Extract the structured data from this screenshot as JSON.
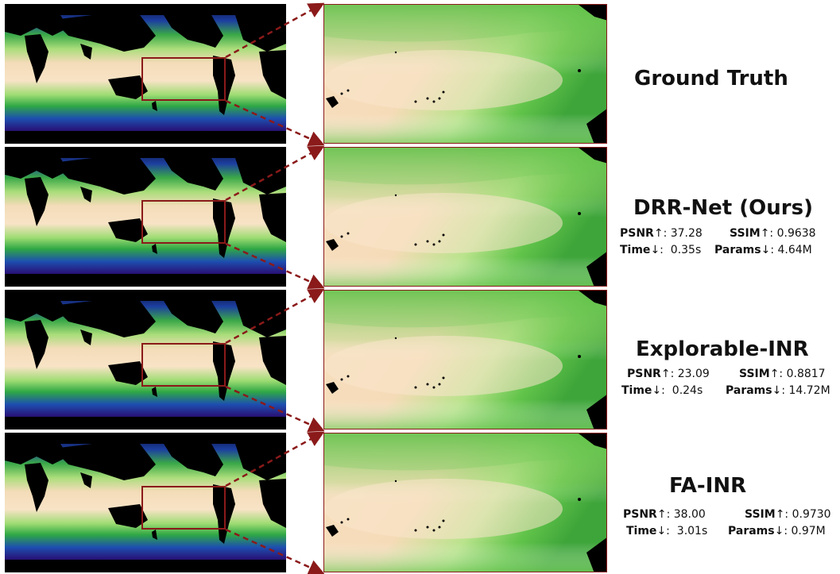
{
  "methods": [
    {
      "name": "Ground Truth",
      "metrics": null
    },
    {
      "name": "DRR-Net (Ours)",
      "metrics": {
        "psnr_label": "PSNR",
        "psnr_arrow": "↑",
        "psnr_value": ": 37.28",
        "ssim_label": "SSIM",
        "ssim_arrow": "↑",
        "ssim_value": ": 0.9638",
        "time_label": "Time",
        "time_arrow": "↓",
        "time_value": ":  0.35s",
        "params_label": "Params",
        "params_arrow": "↓",
        "params_value": ": 4.64M"
      }
    },
    {
      "name": "Explorable-INR",
      "metrics": {
        "psnr_label": "PSNR",
        "psnr_arrow": "↑",
        "psnr_value": ": 23.09",
        "ssim_label": "SSIM",
        "ssim_arrow": "↑",
        "ssim_value": ": 0.8817",
        "time_label": "Time",
        "time_arrow": "↓",
        "time_value": ":  0.24s",
        "params_label": "Params",
        "params_arrow": "↓",
        "params_value": ": 14.72M"
      }
    },
    {
      "name": "FA-INR",
      "metrics": {
        "psnr_label": "PSNR",
        "psnr_arrow": "↑",
        "psnr_value": ": 38.00",
        "ssim_label": "SSIM",
        "ssim_arrow": "↑",
        "ssim_value": ": 0.9730",
        "time_label": "Time",
        "time_arrow": "↓",
        "time_value": ":  3.01s",
        "params_label": "Params",
        "params_arrow": "↓",
        "params_value": ": 0.97M"
      }
    }
  ],
  "colors": {
    "highlight_box": "#8b1a1a",
    "ocean_warm": "#f5dcbc",
    "ocean_mid": "#5cc23c",
    "ocean_cool": "#1e1e80",
    "land": "#000000"
  }
}
